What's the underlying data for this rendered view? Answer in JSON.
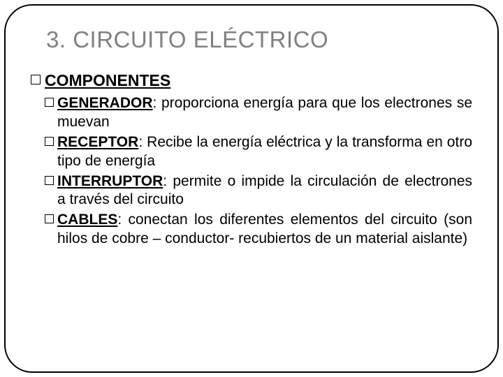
{
  "title": "3. CIRCUITO ELÉCTRICO",
  "section": {
    "heading": "COMPONENTES",
    "items": [
      {
        "term": "GENERADOR",
        "colon": ": ",
        "desc": "proporciona energía para que los electrones se muevan"
      },
      {
        "term": "RECEPTOR",
        "colon": ": ",
        "desc": "Recibe la energía eléctrica y la transforma en otro tipo de energía"
      },
      {
        "term": "INTERRUPTOR",
        "colon": ": ",
        "desc": "permite o impide la circulación de electrones a través del circuito"
      },
      {
        "term": "CABLES",
        "colon": ": ",
        "desc": "conectan los diferentes elementos del circuito (son hilos de cobre – conductor- recubiertos de un material aislante)"
      }
    ]
  },
  "colors": {
    "title": "#808080",
    "text": "#000000",
    "border": "#000000",
    "background": "#ffffff"
  }
}
